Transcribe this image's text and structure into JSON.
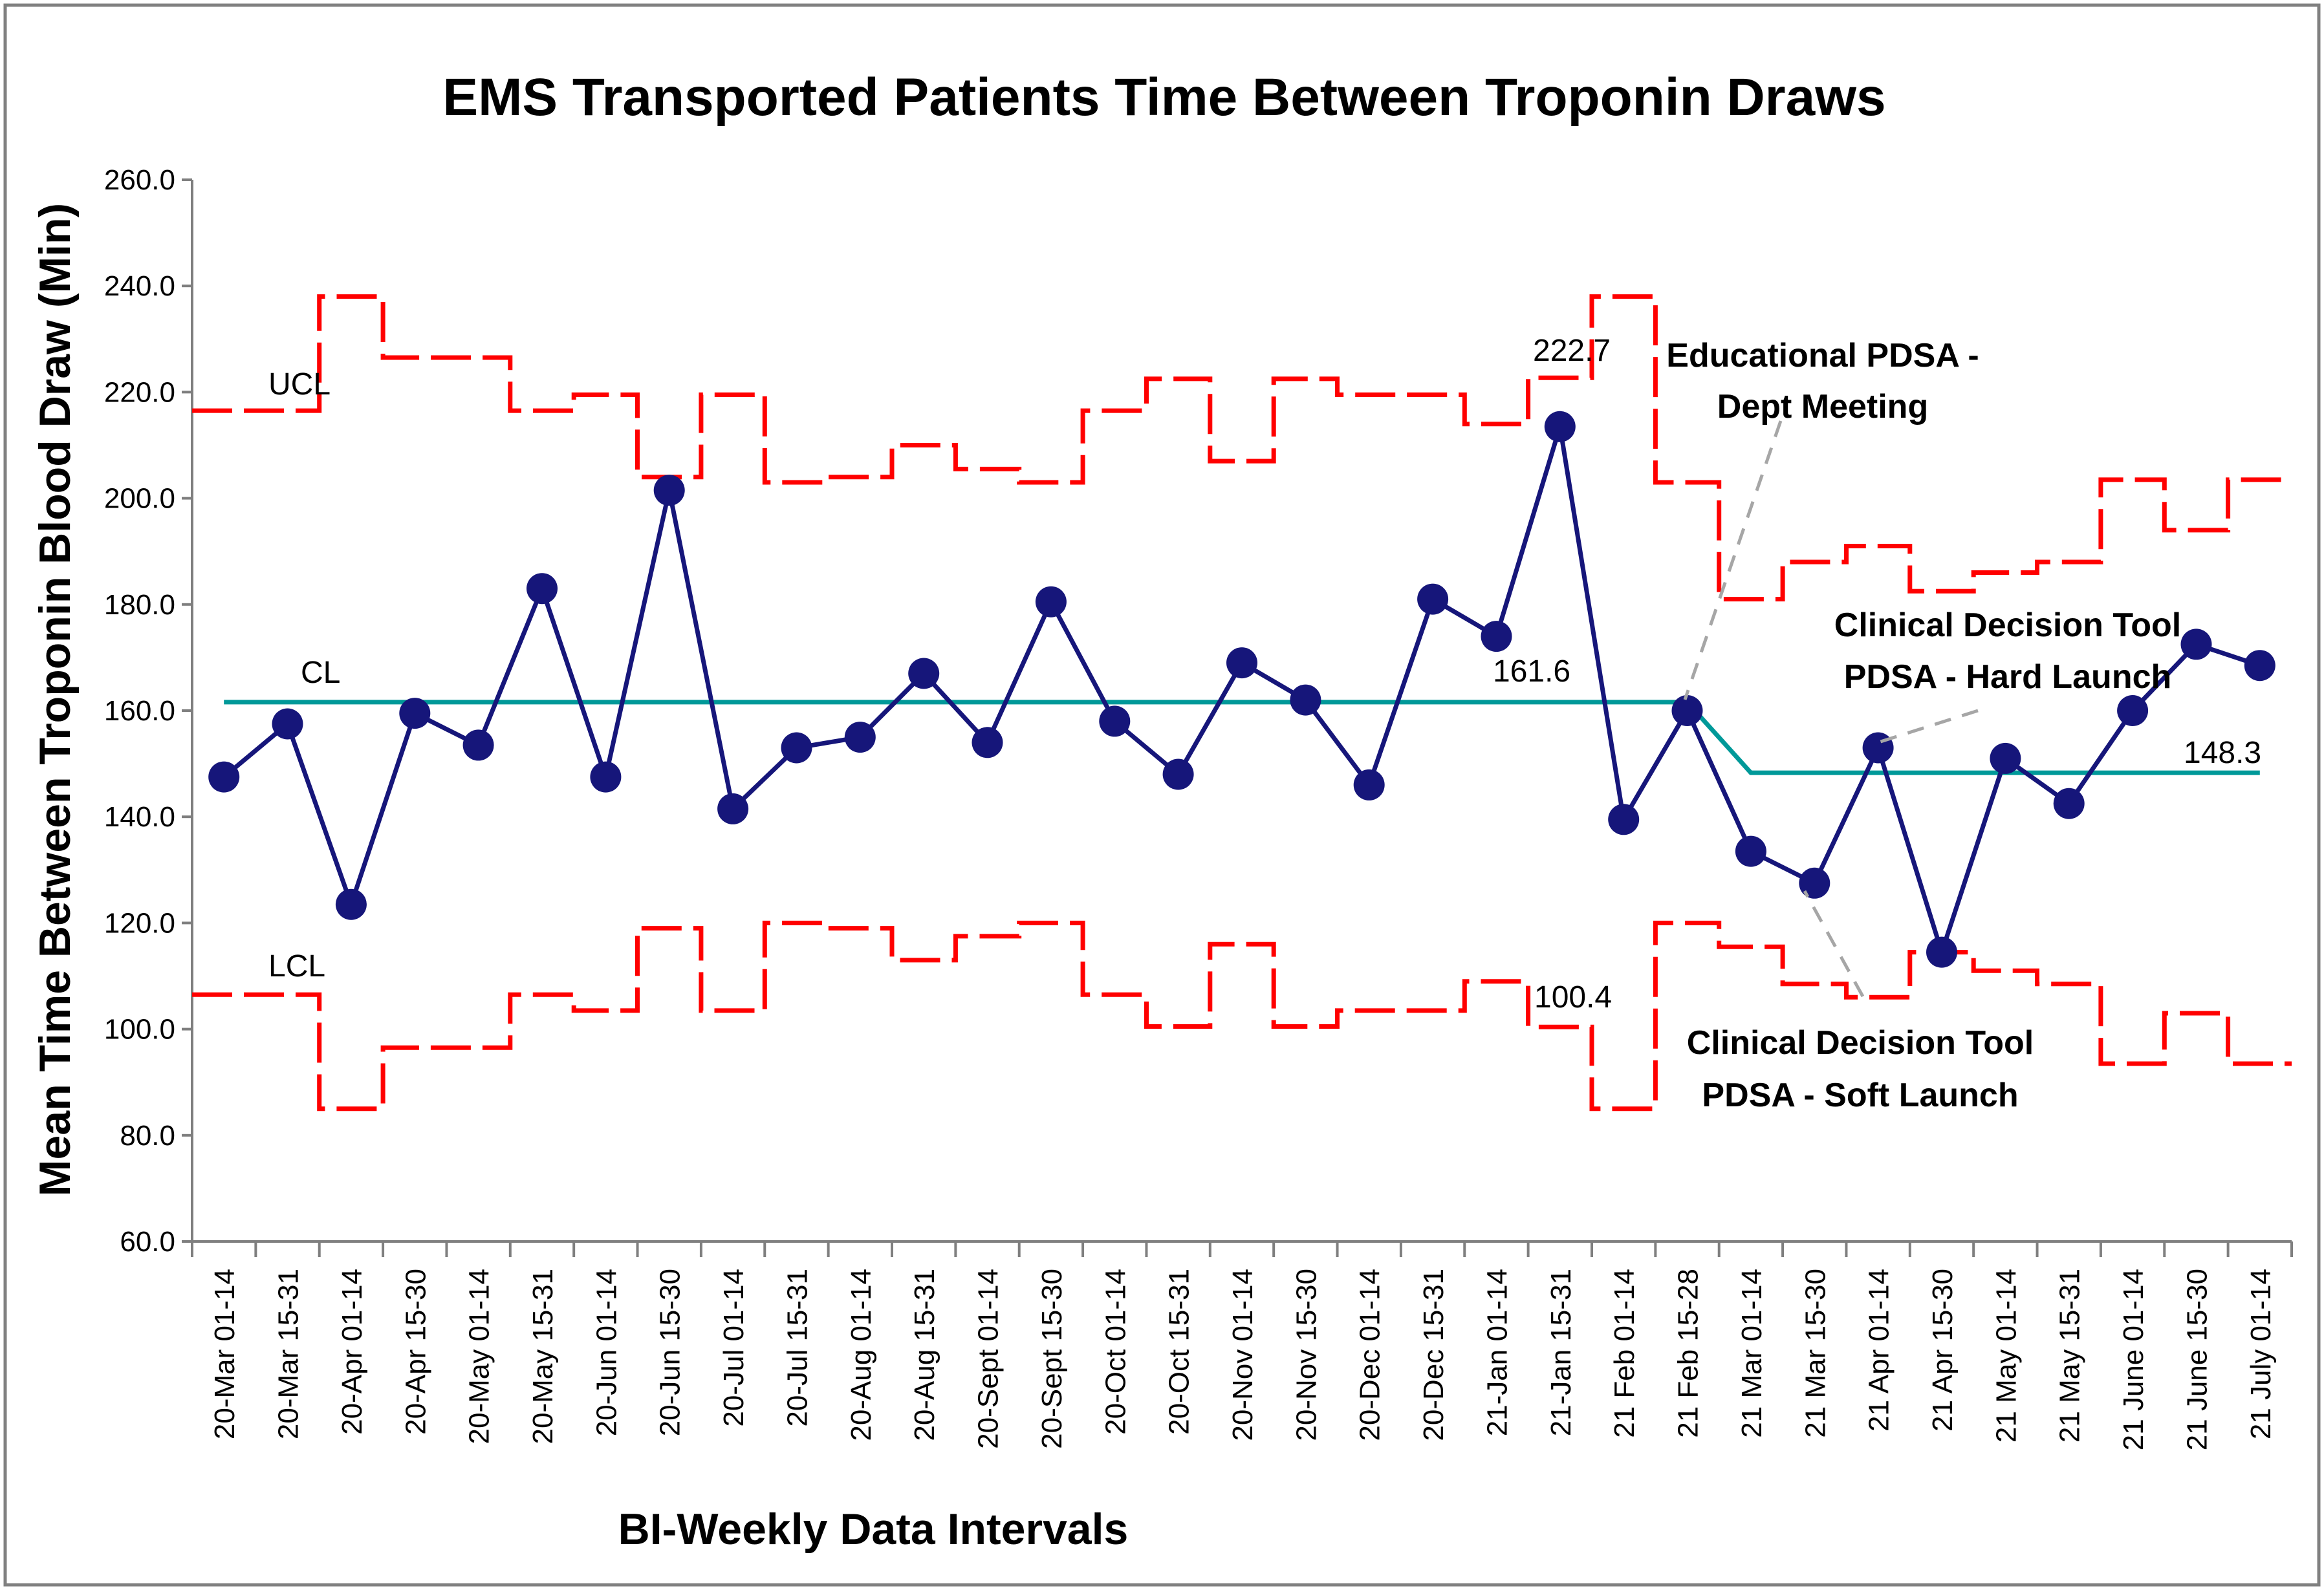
{
  "chart_data": {
    "type": "line",
    "title": "EMS Transported Patients Time Between Troponin Draws",
    "xlabel": "BI-Weekly Data Intervals",
    "ylabel": "Mean Time Between Troponin Blood Draw (Min)",
    "ylim": [
      60,
      260
    ],
    "yticks": [
      60,
      80,
      100,
      120,
      140,
      160,
      180,
      200,
      220,
      240,
      260
    ],
    "ytick_labels": [
      "60.0",
      "80.0",
      "100.0",
      "120.0",
      "140.0",
      "160.0",
      "180.0",
      "200.0",
      "220.0",
      "240.0",
      "260.0"
    ],
    "categories": [
      "20-Mar 01-14",
      "20-Mar 15-31",
      "20-Apr 01-14",
      "20-Apr 15-30",
      "20-May 01-14",
      "20-May 15-31",
      "20-Jun 01-14",
      "20-Jun 15-30",
      "20-Jul 01-14",
      "20-Jul 15-31",
      "20-Aug 01-14",
      "20-Aug 15-31",
      "20-Sept 01-14",
      "20-Sept 15-30",
      "20-Oct 01-14",
      "20-Oct 15-31",
      "20-Nov 01-14",
      "20-Nov 15-30",
      "20-Dec 01-14",
      "20-Dec 15-31",
      "21-Jan 01-14",
      "21-Jan 15-31",
      "21 Feb 01-14",
      "21 Feb 15-28",
      "21 Mar 01-14",
      "21 Mar 15-30",
      "21 Apr 01-14",
      "21 Apr 15-30",
      "21 May 01-14",
      "21 May 15-31",
      "21 June 01-14",
      "21 June 15-30",
      "21 July 01-14"
    ],
    "series": [
      {
        "name": "Mean",
        "color": "#16167a",
        "style": "line-markers",
        "values": [
          147.5,
          157.5,
          123.5,
          159.5,
          153.5,
          183.0,
          147.5,
          201.5,
          141.5,
          153.0,
          155.0,
          167.0,
          154.0,
          180.5,
          158.0,
          148.0,
          169.0,
          162.0,
          146.0,
          181.0,
          174.0,
          213.5,
          139.5,
          160.0,
          133.5,
          127.5,
          153.0,
          114.5,
          151.0,
          142.5,
          160.0,
          172.5,
          168.5
        ]
      },
      {
        "name": "UCL",
        "color": "#ff0000",
        "style": "dashed-step",
        "values": [
          216.5,
          216.5,
          238.0,
          226.5,
          226.5,
          216.5,
          219.5,
          204.0,
          219.5,
          203.0,
          204.0,
          210.0,
          205.5,
          203.0,
          216.5,
          222.5,
          207.0,
          222.5,
          219.5,
          219.5,
          214.0,
          222.7,
          238.0,
          203.0,
          181.0,
          188.0,
          191.0,
          182.5,
          186.0,
          188.0,
          203.5,
          194.0,
          203.5
        ]
      },
      {
        "name": "LCL",
        "color": "#ff0000",
        "style": "dashed-step",
        "values": [
          106.5,
          106.5,
          85.0,
          96.5,
          96.5,
          106.5,
          103.5,
          119.0,
          103.5,
          120.0,
          119.0,
          113.0,
          117.5,
          120.0,
          106.5,
          100.5,
          116.0,
          100.5,
          103.5,
          103.5,
          109.0,
          100.4,
          85.0,
          120.0,
          115.5,
          108.5,
          106.0,
          114.5,
          111.0,
          108.5,
          93.5,
          103.0,
          93.5
        ]
      },
      {
        "name": "CL",
        "color": "#009999",
        "style": "line",
        "values": [
          161.6,
          161.6,
          161.6,
          161.6,
          161.6,
          161.6,
          161.6,
          161.6,
          161.6,
          161.6,
          161.6,
          161.6,
          161.6,
          161.6,
          161.6,
          161.6,
          161.6,
          161.6,
          161.6,
          161.6,
          161.6,
          161.6,
          161.6,
          161.6,
          148.3,
          148.3,
          148.3,
          148.3,
          148.3,
          148.3,
          148.3,
          148.3,
          148.3
        ]
      }
    ],
    "series_labels": {
      "ucl": "UCL",
      "cl": "CL",
      "lcl": "LCL"
    },
    "value_labels": {
      "ucl_value": "222.7",
      "cl_value_1": "161.6",
      "cl_value_2": "148.3",
      "lcl_value": "100.4"
    },
    "annotations": [
      {
        "line1": "Educational PDSA -",
        "line2": "Dept Meeting",
        "target_index": 23
      },
      {
        "line1": "Clinical Decision Tool",
        "line2": "PDSA - Hard Launch",
        "target_index": 26
      },
      {
        "line1": "Clinical Decision Tool",
        "line2": "PDSA - Soft Launch",
        "target_index": 25
      }
    ],
    "grid": false,
    "legend": "none"
  }
}
